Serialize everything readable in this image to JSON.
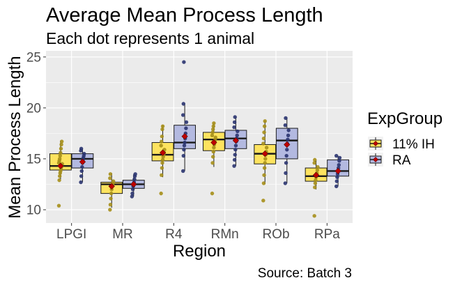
{
  "chart_data": {
    "type": "box",
    "title": "Average Mean Process Length",
    "subtitle": "Each dot represents 1 animal",
    "caption": "Source: Batch 3",
    "xlabel": "Region",
    "ylabel": "Mean Process Length",
    "ylim": [
      8.7,
      25.6
    ],
    "yticks": [
      10,
      15,
      20,
      25
    ],
    "categories": [
      "LPGI",
      "MR",
      "R4",
      "RMn",
      "ROb",
      "RPa"
    ],
    "grid": true,
    "legend": {
      "title": "ExpGroup",
      "position": "right"
    },
    "mean_marker_color": "#c00000",
    "series": [
      {
        "name": "11% IH",
        "fill": "#fde35f",
        "point_color": "#a68f1a",
        "boxes": [
          {
            "q1": 13.9,
            "median": 14.3,
            "q3": 15.5,
            "whisker_low": 13.0,
            "whisker_high": 16.8,
            "mean": 14.3,
            "points": [
              10.4,
              12.9,
              13.3,
              13.6,
              13.8,
              14.0,
              14.2,
              14.3,
              14.5,
              14.6,
              14.8,
              15.0,
              15.3,
              15.6,
              16.0,
              16.4,
              16.7
            ]
          },
          {
            "q1": 11.6,
            "median": 12.5,
            "q3": 12.7,
            "whisker_low": 10.2,
            "whisker_high": 13.6,
            "mean": 12.3,
            "points": [
              10.0,
              10.5,
              11.1,
              11.6,
              12.0,
              12.3,
              12.5,
              12.6,
              12.8,
              13.1,
              13.5
            ]
          },
          {
            "q1": 14.8,
            "median": 15.4,
            "q3": 16.6,
            "whisker_low": 13.2,
            "whisker_high": 18.3,
            "mean": 15.6,
            "points": [
              11.6,
              13.4,
              14.1,
              14.6,
              14.9,
              15.2,
              15.4,
              15.6,
              15.9,
              16.3,
              16.7,
              17.2,
              17.9,
              18.2
            ]
          },
          {
            "q1": 15.8,
            "median": 16.9,
            "q3": 17.6,
            "whisker_low": 14.2,
            "whisker_high": 18.5,
            "mean": 16.6,
            "points": [
              11.6,
              14.6,
              15.2,
              15.7,
              16.1,
              16.4,
              16.7,
              16.9,
              17.1,
              17.3,
              17.6,
              17.9,
              18.2,
              18.5
            ]
          },
          {
            "q1": 14.5,
            "median": 15.5,
            "q3": 16.4,
            "whisker_low": 12.5,
            "whisker_high": 18.7,
            "mean": 15.5,
            "points": [
              10.9,
              12.6,
              13.4,
              14.1,
              14.6,
              15.0,
              15.4,
              15.7,
              16.1,
              16.5,
              17.0,
              17.6,
              18.2,
              18.7
            ]
          },
          {
            "q1": 12.8,
            "median": 13.3,
            "q3": 14.1,
            "whisker_low": 12.0,
            "whisker_high": 14.9,
            "mean": 13.4,
            "points": [
              9.4,
              12.2,
              12.6,
              12.9,
              13.2,
              13.4,
              13.6,
              13.9,
              14.2,
              14.6,
              14.9
            ]
          }
        ]
      },
      {
        "name": "RA",
        "fill": "#b3b9e0",
        "point_color": "#2a3470",
        "boxes": [
          {
            "q1": 14.1,
            "median": 15.0,
            "q3": 15.5,
            "whisker_low": 12.7,
            "whisker_high": 16.0,
            "mean": 14.7,
            "points": [
              12.7,
              13.3,
              13.8,
              14.2,
              14.6,
              14.9,
              15.1,
              15.3,
              15.5,
              15.8,
              16.0
            ]
          },
          {
            "q1": 12.1,
            "median": 12.5,
            "q3": 12.9,
            "whisker_low": 11.3,
            "whisker_high": 13.5,
            "mean": 12.5,
            "points": [
              11.3,
              11.6,
              12.0,
              12.3,
              12.5,
              12.7,
              13.0,
              13.3,
              13.5
            ]
          },
          {
            "q1": 16.0,
            "median": 16.6,
            "q3": 18.3,
            "whisker_low": 13.8,
            "whisker_high": 20.4,
            "mean": 17.2,
            "points": [
              13.8,
              15.3,
              15.9,
              16.3,
              16.6,
              17.0,
              17.5,
              18.0,
              18.6,
              19.3,
              20.4,
              24.5
            ]
          },
          {
            "q1": 16.0,
            "median": 17.0,
            "q3": 17.8,
            "whisker_low": 14.3,
            "whisker_high": 19.1,
            "mean": 16.8,
            "points": [
              14.3,
              14.9,
              15.4,
              15.9,
              16.3,
              16.7,
              17.0,
              17.3,
              17.7,
              18.1,
              18.6,
              19.1
            ]
          },
          {
            "q1": 15.0,
            "median": 16.8,
            "q3": 18.0,
            "whisker_low": 12.6,
            "whisker_high": 19.0,
            "mean": 16.4,
            "points": [
              12.6,
              13.6,
              14.6,
              15.3,
              15.9,
              16.5,
              16.9,
              17.3,
              17.8,
              18.3,
              19.0
            ]
          },
          {
            "q1": 13.3,
            "median": 13.8,
            "q3": 14.9,
            "whisker_low": 12.3,
            "whisker_high": 15.3,
            "mean": 13.8,
            "points": [
              12.3,
              12.8,
              13.2,
              13.5,
              13.8,
              14.1,
              14.4,
              14.8,
              15.1,
              15.3
            ]
          }
        ]
      }
    ]
  }
}
